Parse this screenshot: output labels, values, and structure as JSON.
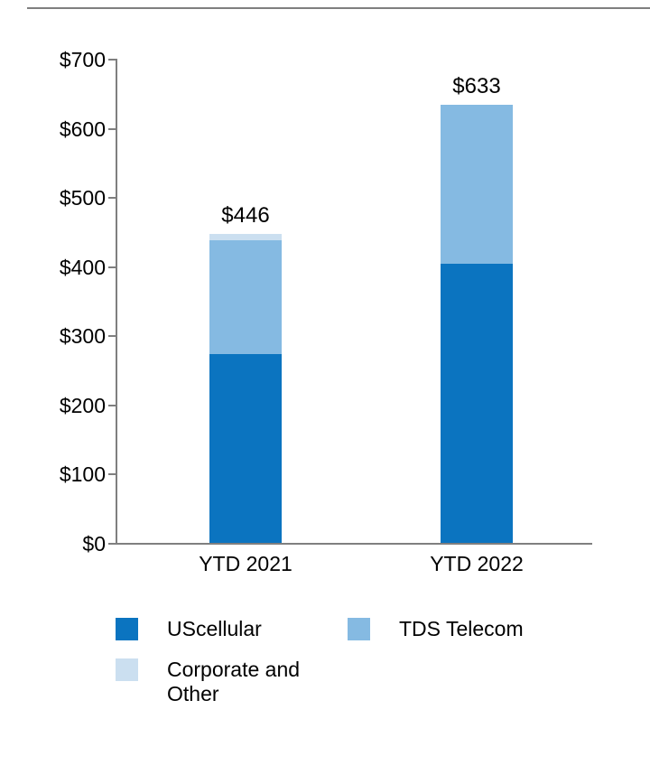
{
  "chart_data": {
    "type": "bar",
    "stacked": true,
    "title": "",
    "xlabel": "",
    "ylabel": "",
    "categories": [
      "YTD 2021",
      "YTD 2022"
    ],
    "series": [
      {
        "name": "UScellular",
        "color": "#0b74c0",
        "values": [
          273,
          404
        ]
      },
      {
        "name": "TDS Telecom",
        "color": "#85bae2",
        "values": [
          164,
          229
        ]
      },
      {
        "name": "Corporate and Other",
        "color": "#cbdff0",
        "values": [
          9,
          0
        ]
      }
    ],
    "totals": [
      446,
      633
    ],
    "total_labels": [
      "$446",
      "$633"
    ],
    "ylim": [
      0,
      700
    ],
    "ytick_step": 100,
    "ytick_labels": [
      "$0",
      "$100",
      "$200",
      "$300",
      "$400",
      "$500",
      "$600",
      "$700"
    ],
    "grid": false,
    "legend_position": "bottom",
    "legend": [
      {
        "label": "UScellular",
        "color": "#0b74c0"
      },
      {
        "label": "TDS Telecom",
        "color": "#85bae2"
      },
      {
        "label": "Corporate and Other",
        "color": "#cbdff0"
      }
    ]
  }
}
